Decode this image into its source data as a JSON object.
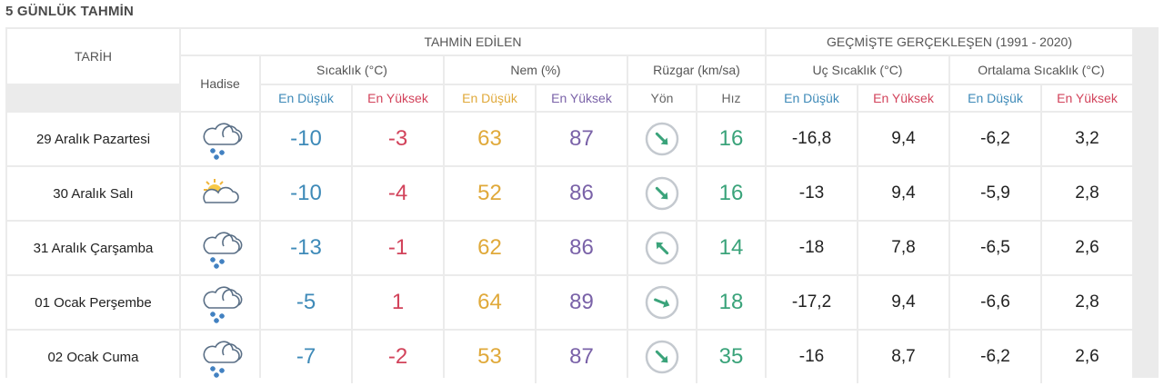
{
  "title": "5 GÜNLÜK TAHMİN",
  "headers": {
    "date": "TARİH",
    "event": "Hadise",
    "forecast": "TAHMİN EDİLEN",
    "history": "GEÇMİŞTE GERÇEKLEŞEN (1991 - 2020)",
    "temp": "Sıcaklık (°C)",
    "humidity": "Nem (%)",
    "wind": "Rüzgar (km/sa)",
    "extreme": "Uç Sıcaklık (°C)",
    "avg": "Ortalama Sıcaklık (°C)",
    "min": "En Düşük",
    "max": "En Yüksek",
    "dir": "Yön",
    "speed": "Hız"
  },
  "rows": [
    {
      "date": "29 Aralık Pazartesi",
      "icon": "snow-cloud-icon",
      "tmin": "-10",
      "tmax": "-3",
      "hmin": "63",
      "hmax": "87",
      "wind_dir_deg": 135,
      "wind_speed": "16",
      "ext_min": "-16,8",
      "ext_max": "9,4",
      "avg_min": "-6,2",
      "avg_max": "3,2"
    },
    {
      "date": "30 Aralık Salı",
      "icon": "partly-sunny-icon",
      "tmin": "-10",
      "tmax": "-4",
      "hmin": "52",
      "hmax": "86",
      "wind_dir_deg": 135,
      "wind_speed": "16",
      "ext_min": "-13",
      "ext_max": "9,4",
      "avg_min": "-5,9",
      "avg_max": "2,8"
    },
    {
      "date": "31 Aralık Çarşamba",
      "icon": "snow-cloud-icon",
      "tmin": "-13",
      "tmax": "-1",
      "hmin": "62",
      "hmax": "86",
      "wind_dir_deg": 315,
      "wind_speed": "14",
      "ext_min": "-18",
      "ext_max": "7,8",
      "avg_min": "-6,5",
      "avg_max": "2,6"
    },
    {
      "date": "01 Ocak Perşembe",
      "icon": "snow-cloud-icon",
      "tmin": "-5",
      "tmax": "1",
      "hmin": "64",
      "hmax": "89",
      "wind_dir_deg": 112,
      "wind_speed": "18",
      "ext_min": "-17,2",
      "ext_max": "9,4",
      "avg_min": "-6,6",
      "avg_max": "2,8"
    },
    {
      "date": "02 Ocak Cuma",
      "icon": "snow-cloud-icon",
      "tmin": "-7",
      "tmax": "-2",
      "hmin": "53",
      "hmax": "87",
      "wind_dir_deg": 135,
      "wind_speed": "35",
      "ext_min": "-16",
      "ext_max": "8,7",
      "avg_min": "-6,2",
      "avg_max": "2,6"
    }
  ]
}
